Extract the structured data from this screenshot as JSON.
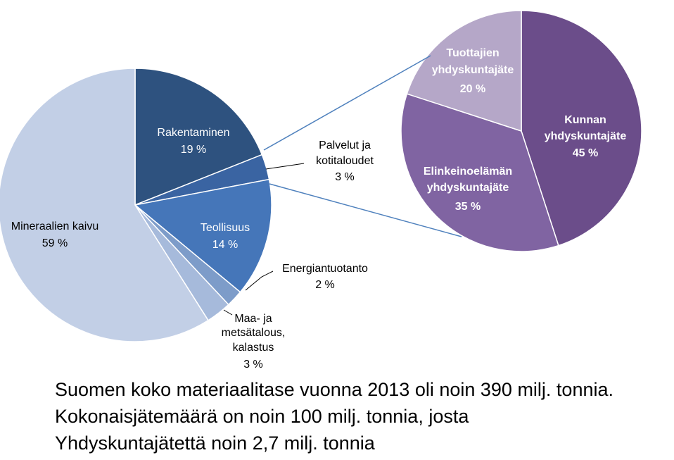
{
  "chart_data": [
    {
      "type": "pie",
      "slices": [
        {
          "label": "Rakentaminen",
          "value": 19,
          "display": "19 %",
          "color": "#2e527f"
        },
        {
          "label": "Palvelut ja kotitaloudet",
          "value": 3,
          "display": "3 %",
          "color": "#3a64a2"
        },
        {
          "label": "Teollisuus",
          "value": 14,
          "display": "14 %",
          "color": "#4576b9"
        },
        {
          "label": "Energiantuotanto",
          "value": 2,
          "display": "2 %",
          "color": "#7d9cc9"
        },
        {
          "label": "Maa- ja metsätalous, kalastus",
          "value": 3,
          "display": "3 %",
          "color": "#a6badb"
        },
        {
          "label": "Mineraalien kaivu",
          "value": 59,
          "display": "59 %",
          "color": "#c2cfe6"
        }
      ]
    },
    {
      "type": "pie",
      "slices": [
        {
          "label": "Kunnan yhdyskuntajäte",
          "value": 45,
          "display": "45 %",
          "color": "#6b4d8a"
        },
        {
          "label": "Elinkeinoelämän yhdyskuntajäte",
          "value": 35,
          "display": "35 %",
          "color": "#8064a2"
        },
        {
          "label": "Tuottajien yhdyskuntajäte",
          "value": 20,
          "display": "20 %",
          "color": "#b5a7c8"
        }
      ]
    }
  ],
  "labels": {
    "rakentaminen": {
      "name": "Rakentaminen",
      "pct": "19 %"
    },
    "palvelut": {
      "line1": "Palvelut ja",
      "line2": "kotitaloudet",
      "pct": "3 %"
    },
    "teollisuus": {
      "name": "Teollisuus",
      "pct": "14 %"
    },
    "energia": {
      "name": "Energiantuotanto",
      "pct": "2 %"
    },
    "maa": {
      "line1": "Maa- ja",
      "line2": "metsätalous,",
      "line3": "kalastus",
      "pct": "3 %"
    },
    "mineraali": {
      "name": "Mineraalien kaivu",
      "pct": "59 %"
    },
    "kunnan": {
      "line1": "Kunnan",
      "line2": "yhdyskuntajäte",
      "pct": "45 %"
    },
    "elinkeino": {
      "line1": "Elinkeinoelämän",
      "line2": "yhdyskuntajäte",
      "pct": "35 %"
    },
    "tuottajien": {
      "line1": "Tuottajien",
      "line2": "yhdyskuntajäte",
      "pct": "20 %"
    }
  },
  "caption": {
    "line1": "Suomen koko materiaalitase vuonna  2013 oli noin 390 milj. tonnia.",
    "line2": "Kokonaisjätemäärä on noin 100 milj. tonnia, josta",
    "line3": "Yhdyskuntajätettä noin 2,7 milj. tonnia"
  }
}
